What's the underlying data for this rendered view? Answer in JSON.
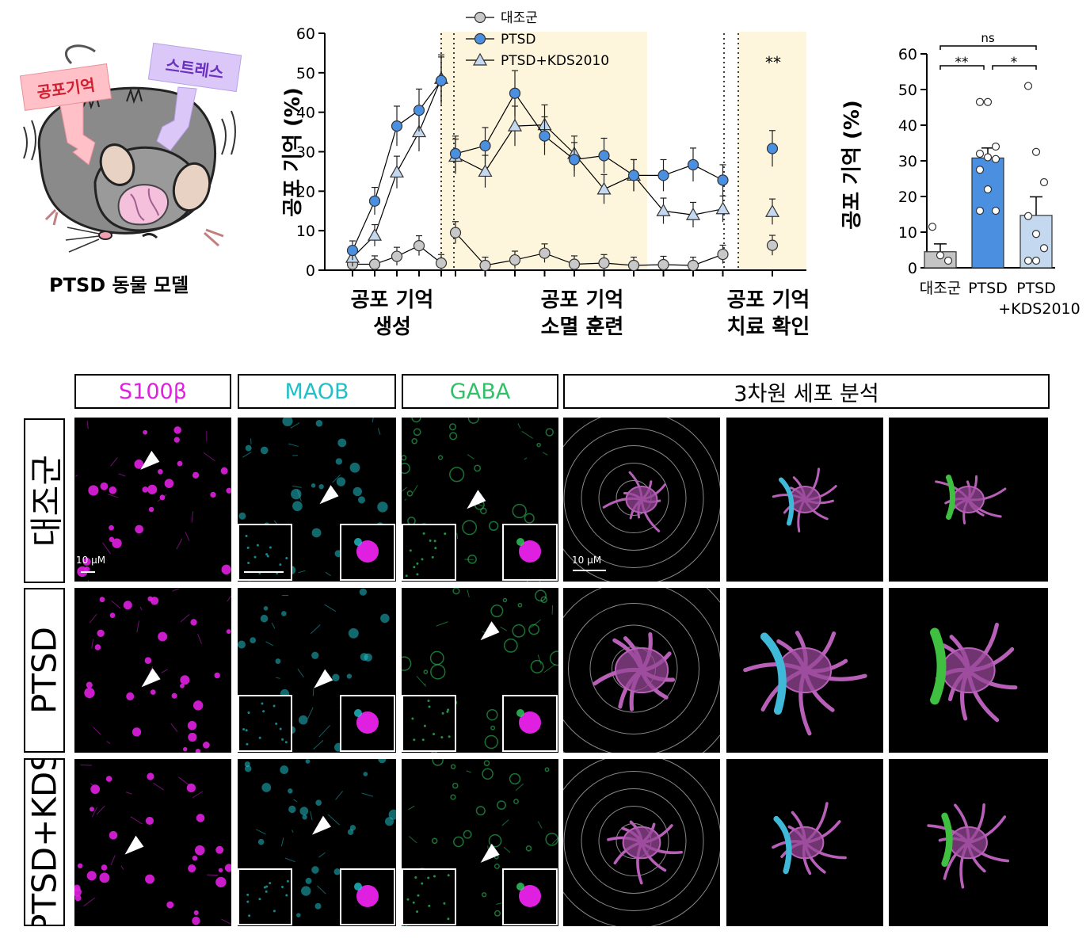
{
  "mouse": {
    "sign_fear": "공포기억",
    "sign_stress": "스트레스",
    "caption": "PTSD 동물 모델"
  },
  "timeline": {
    "ylabel": "공포 기억 (%)",
    "yticks": [
      "0",
      "10",
      "20",
      "30",
      "40",
      "50",
      "60"
    ],
    "stars": "**",
    "phases": [
      {
        "line1": "공포 기억",
        "line2": "생성"
      },
      {
        "line1": "공포 기억",
        "line2": "소멸 훈련"
      },
      {
        "line1": "공포 기억",
        "line2": "치료 확인"
      }
    ]
  },
  "barplot": {
    "ylabel": "공포 기억 (%)",
    "yticks": [
      "0",
      "10",
      "20",
      "30",
      "40",
      "50",
      "60"
    ],
    "ns": "ns",
    "sig1": "**",
    "sig2": "*",
    "cat1": "대조군",
    "cat2": "PTSD",
    "cat3a": "PTSD",
    "cat3b": "+KDS2010"
  },
  "chart_data": [
    {
      "type": "line",
      "ylabel": "공포 기억 (%)",
      "ylim": [
        0,
        60
      ],
      "legend_position": "top-left",
      "series": [
        {
          "name": "대조군",
          "color": "#c8c8c8",
          "marker": "circle",
          "acquisition": [
            1.5,
            1.5,
            3.5,
            6.2,
            1.8
          ],
          "extinction": [
            9.5,
            1.2,
            2.6,
            4.3,
            1.5,
            1.8,
            1.2,
            1.4,
            1.2,
            4.0
          ],
          "test": [
            6.3
          ]
        },
        {
          "name": "PTSD",
          "color": "#4a8fe0",
          "marker": "circle",
          "acquisition": [
            5.0,
            17.5,
            36.5,
            40.5,
            48.0
          ],
          "extinction": [
            29.5,
            31.5,
            44.8,
            34.0,
            28.0,
            29.0,
            24.0,
            24.0,
            26.7,
            22.8
          ],
          "test": [
            30.8
          ]
        },
        {
          "name": "PTSD+KDS2010",
          "color": "#c4d8ef",
          "marker": "triangle",
          "acquisition": [
            3.2,
            8.8,
            24.8,
            35.0,
            48.5
          ],
          "extinction": [
            28.8,
            25.0,
            36.5,
            36.8,
            29.5,
            20.5,
            24.0,
            15.0,
            14.0,
            15.5
          ],
          "test": [
            14.8
          ]
        }
      ]
    },
    {
      "type": "bar",
      "ylabel": "공포 기억 (%)",
      "ylim": [
        0,
        60
      ],
      "categories": [
        "대조군",
        "PTSD",
        "PTSD +KDS2010"
      ],
      "values": [
        4.5,
        30.8,
        14.7
      ],
      "errors": [
        2.2,
        2.8,
        5.2
      ],
      "colors": [
        "#c4c4c4",
        "#4a8fe0",
        "#c4d8ef"
      ],
      "points": [
        [
          11.5,
          3.5,
          2.0
        ],
        [
          46.5,
          46.5,
          34.0,
          32.0,
          31.0,
          30.5,
          27.5,
          22.0,
          16.0,
          16.0
        ],
        [
          51.0,
          32.5,
          24.0,
          14.5,
          9.5,
          5.5,
          2.0,
          2.0
        ]
      ],
      "significance": [
        {
          "groups": [
            "대조군",
            "PTSD"
          ],
          "label": "**"
        },
        {
          "groups": [
            "PTSD",
            "PTSD +KDS2010"
          ],
          "label": "*"
        },
        {
          "groups": [
            "대조군",
            "PTSD +KDS2010"
          ],
          "label": "ns"
        }
      ]
    }
  ],
  "micro": {
    "col_s100b": "S100β",
    "col_maob": "MAOB",
    "col_gaba": "GABA",
    "col_3d": "3차원 세포 분석",
    "row_control": "대조군",
    "row_ptsd": "PTSD",
    "row_kds": "PTSD+KDS",
    "scale1": "10 μM",
    "scale2": "10 μM",
    "colors": {
      "s100b": "#e020e0",
      "maob": "#20c0c8",
      "gaba": "#30d060",
      "astro": "#b860b8"
    }
  }
}
